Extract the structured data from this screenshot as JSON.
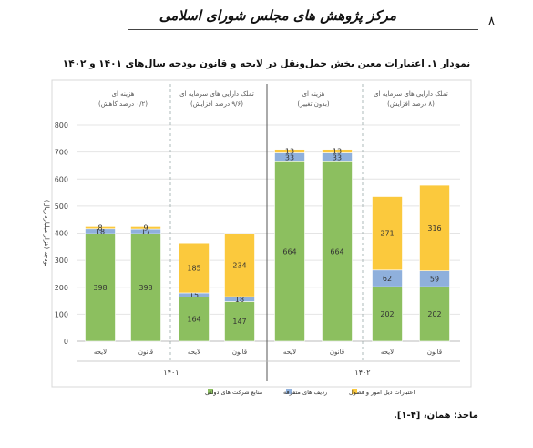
{
  "header": {
    "title": "مرکز پژوهش های مجلس شورای اسلامی",
    "page_number": "۸"
  },
  "chart_data": {
    "type": "bar",
    "title": "نمودار ۱. اعتبارات معین بخش حمل‌ونقل در لایحه و قانون بودجه سال‌های ۱۴۰۱ و ۱۴۰۲",
    "ylabel": "بودجه (هزار میلیارد ریال)",
    "xlabel": "",
    "ylim": [
      0,
      800
    ],
    "yticks": [
      0,
      100,
      200,
      300,
      400,
      500,
      600,
      700,
      800
    ],
    "grid": true,
    "stacked": true,
    "legend_position": "bottom",
    "categories": [
      "لایحه",
      "قانون",
      "لایحه",
      "قانون",
      "لایحه",
      "قانون",
      "لایحه",
      "قانون"
    ],
    "series": [
      {
        "name": "منابع شرکت های دولتی",
        "color": "#8cbf5f",
        "values": [
          398,
          398,
          164,
          147,
          664,
          664,
          202,
          202
        ]
      },
      {
        "name": "ردیف های متفرقه",
        "color": "#8fb0dc",
        "values": [
          18,
          17,
          15,
          18,
          33,
          33,
          62,
          59
        ]
      },
      {
        "name": "اعتبارات ذیل امور و فصول",
        "color": "#fbc93d",
        "values": [
          8,
          9,
          185,
          234,
          13,
          13,
          271,
          316
        ]
      }
    ],
    "group_labels": [
      {
        "line1": "هزینه ای",
        "line2": "(۰/۲ درصد کاهش)"
      },
      {
        "line1": "تملک دارایی های سرمایه ای",
        "line2": "(۹/۶ درصد افزایش)"
      },
      {
        "line1": "هزینه ای",
        "line2": "(بدون تغییر)"
      },
      {
        "line1": "تملک دارایی های سرمایه ای",
        "line2": "(۸ درصد افزایش)"
      }
    ],
    "years": [
      "۱۴۰۱",
      "۱۴۰۲"
    ]
  },
  "source": "ماخذ: همان، [۴-۱]."
}
